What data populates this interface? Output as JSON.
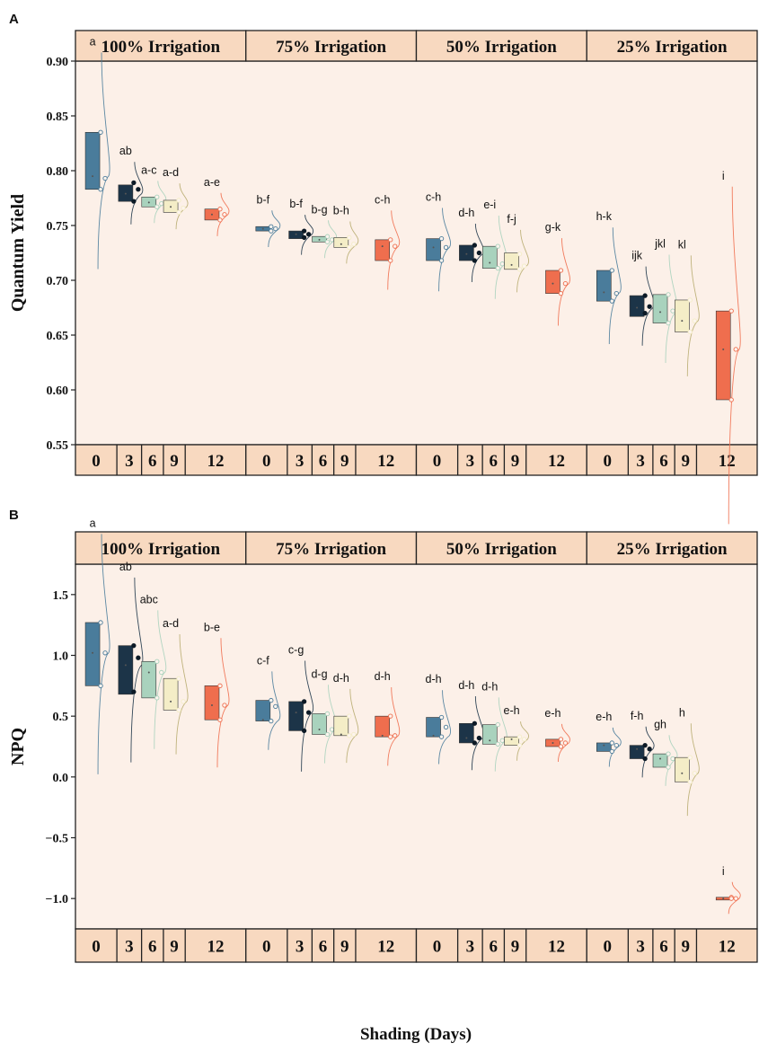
{
  "figure": {
    "x_title": "Shading (Days)",
    "fill_colors": {
      "0": "#4a7c9b",
      "3": "#1c3448",
      "6": "#a9d2bd",
      "9": "#f4edc7",
      "12": "#ef6e4e"
    },
    "panel_background": "#fcf0e8",
    "strip_background": "#f8d9c0"
  },
  "chart_data": [
    {
      "type": "box-violin",
      "panel_label": "A",
      "ylabel": "Quantum Yield",
      "ylim": [
        0.55,
        0.9
      ],
      "yticks": [
        0.55,
        0.6,
        0.65,
        0.7,
        0.75,
        0.8,
        0.85,
        0.9
      ],
      "ytick_labels": [
        "0.55",
        "0.60",
        "0.65",
        "0.70",
        "0.75",
        "0.80",
        "0.85",
        "0.90"
      ],
      "facets": [
        "100% Irrigation",
        "75% Irrigation",
        "50% Irrigation",
        "25% Irrigation"
      ],
      "categories": [
        "0",
        "3",
        "6",
        "9",
        "12"
      ],
      "series": [
        {
          "facet": "100% Irrigation",
          "groups": [
            {
              "day": "0",
              "q1": 0.783,
              "q3": 0.835,
              "median": 0.795,
              "letter": "a",
              "points": [
                0.835,
                0.793,
                0.783
              ]
            },
            {
              "day": "3",
              "q1": 0.772,
              "q3": 0.787,
              "median": 0.779,
              "letter": "ab",
              "points": [
                0.789,
                0.783,
                0.772
              ]
            },
            {
              "day": "6",
              "q1": 0.767,
              "q3": 0.776,
              "median": 0.771,
              "letter": "a-c",
              "points": [
                0.776,
                0.77,
                0.767
              ]
            },
            {
              "day": "9",
              "q1": 0.762,
              "q3": 0.773,
              "median": 0.767,
              "letter": "a-d",
              "points": [
                0.773,
                0.766,
                0.762
              ]
            },
            {
              "day": "12",
              "q1": 0.755,
              "q3": 0.765,
              "median": 0.76,
              "letter": "a-e",
              "points": [
                0.765,
                0.76,
                0.755
              ]
            }
          ]
        },
        {
          "facet": "75% Irrigation",
          "groups": [
            {
              "day": "0",
              "q1": 0.745,
              "q3": 0.749,
              "median": 0.747,
              "letter": "b-f",
              "points": [
                0.749,
                0.747,
                0.745
              ]
            },
            {
              "day": "3",
              "q1": 0.738,
              "q3": 0.745,
              "median": 0.742,
              "letter": "b-f",
              "points": [
                0.745,
                0.742,
                0.739
              ]
            },
            {
              "day": "6",
              "q1": 0.735,
              "q3": 0.74,
              "median": 0.737,
              "letter": "b-g",
              "points": [
                0.74,
                0.737,
                0.735
              ]
            },
            {
              "day": "9",
              "q1": 0.73,
              "q3": 0.739,
              "median": 0.733,
              "letter": "b-h",
              "points": [
                0.739,
                0.733,
                0.73
              ]
            },
            {
              "day": "12",
              "q1": 0.718,
              "q3": 0.737,
              "median": 0.731,
              "letter": "c-h",
              "points": [
                0.737,
                0.731,
                0.718
              ]
            }
          ]
        },
        {
          "facet": "50% Irrigation",
          "groups": [
            {
              "day": "0",
              "q1": 0.718,
              "q3": 0.738,
              "median": 0.73,
              "letter": "c-h",
              "points": [
                0.738,
                0.73,
                0.718
              ]
            },
            {
              "day": "3",
              "q1": 0.718,
              "q3": 0.732,
              "median": 0.724,
              "letter": "d-h",
              "points": [
                0.732,
                0.725,
                0.718
              ]
            },
            {
              "day": "6",
              "q1": 0.711,
              "q3": 0.731,
              "median": 0.716,
              "letter": "e-i",
              "points": [
                0.731,
                0.715,
                0.711
              ]
            },
            {
              "day": "9",
              "q1": 0.71,
              "q3": 0.725,
              "median": 0.714,
              "letter": "f-j",
              "points": [
                0.724,
                0.713,
                0.71
              ]
            },
            {
              "day": "12",
              "q1": 0.688,
              "q3": 0.709,
              "median": 0.697,
              "letter": "g-k",
              "points": [
                0.709,
                0.697,
                0.688
              ]
            }
          ]
        },
        {
          "facet": "25% Irrigation",
          "groups": [
            {
              "day": "0",
              "q1": 0.681,
              "q3": 0.709,
              "median": 0.689,
              "letter": "h-k",
              "points": [
                0.709,
                0.688,
                0.681
              ]
            },
            {
              "day": "3",
              "q1": 0.667,
              "q3": 0.686,
              "median": 0.675,
              "letter": "ijk",
              "points": [
                0.686,
                0.676,
                0.67
              ]
            },
            {
              "day": "6",
              "q1": 0.661,
              "q3": 0.687,
              "median": 0.671,
              "letter": "jkl",
              "points": [
                0.687,
                0.672,
                0.661
              ]
            },
            {
              "day": "9",
              "q1": 0.653,
              "q3": 0.682,
              "median": 0.663,
              "letter": "kl",
              "points": [
                0.682,
                0.663,
                0.653
              ]
            },
            {
              "day": "12",
              "q1": 0.591,
              "q3": 0.672,
              "median": 0.637,
              "letter": "i",
              "points": [
                0.672,
                0.637,
                0.591
              ]
            }
          ]
        }
      ]
    },
    {
      "type": "box-violin",
      "panel_label": "B",
      "ylabel": "NPQ",
      "ylim": [
        -1.25,
        1.75
      ],
      "yticks": [
        -1.0,
        -0.5,
        0.0,
        0.5,
        1.0,
        1.5
      ],
      "ytick_labels": [
        "−1.0",
        "−0.5",
        "0.0",
        "0.5",
        "1.0",
        "1.5"
      ],
      "facets": [
        "100% Irrigation",
        "75% Irrigation",
        "50% Irrigation",
        "25% Irrigation"
      ],
      "categories": [
        "0",
        "3",
        "6",
        "9",
        "12"
      ],
      "series": [
        {
          "facet": "100% Irrigation",
          "groups": [
            {
              "day": "0",
              "q1": 0.75,
              "q3": 1.27,
              "median": 1.02,
              "letter": "a",
              "points": [
                1.27,
                1.02,
                0.75
              ]
            },
            {
              "day": "3",
              "q1": 0.68,
              "q3": 1.08,
              "median": 0.92,
              "letter": "ab",
              "points": [
                1.08,
                0.98,
                0.7
              ]
            },
            {
              "day": "6",
              "q1": 0.65,
              "q3": 0.95,
              "median": 0.86,
              "letter": "abc",
              "points": [
                0.95,
                0.86,
                0.65
              ]
            },
            {
              "day": "9",
              "q1": 0.55,
              "q3": 0.81,
              "median": 0.62,
              "letter": "a-d",
              "points": [
                0.81,
                0.62,
                0.55
              ]
            },
            {
              "day": "12",
              "q1": 0.47,
              "q3": 0.75,
              "median": 0.59,
              "letter": "b-e",
              "points": [
                0.75,
                0.59,
                0.47
              ]
            }
          ]
        },
        {
          "facet": "75% Irrigation",
          "groups": [
            {
              "day": "0",
              "q1": 0.46,
              "q3": 0.63,
              "median": 0.47,
              "letter": "c-f",
              "points": [
                0.63,
                0.58,
                0.46
              ]
            },
            {
              "day": "3",
              "q1": 0.38,
              "q3": 0.62,
              "median": 0.53,
              "letter": "c-g",
              "points": [
                0.62,
                0.53,
                0.38
              ]
            },
            {
              "day": "6",
              "q1": 0.35,
              "q3": 0.52,
              "median": 0.39,
              "letter": "d-g",
              "points": [
                0.52,
                0.39,
                0.35
              ]
            },
            {
              "day": "9",
              "q1": 0.34,
              "q3": 0.5,
              "median": 0.35,
              "letter": "d-h",
              "points": [
                0.5,
                0.35,
                0.34
              ]
            },
            {
              "day": "12",
              "q1": 0.33,
              "q3": 0.5,
              "median": 0.34,
              "letter": "d-h",
              "points": [
                0.5,
                0.34,
                0.33
              ]
            }
          ]
        },
        {
          "facet": "50% Irrigation",
          "groups": [
            {
              "day": "0",
              "q1": 0.33,
              "q3": 0.49,
              "median": 0.34,
              "letter": "d-h",
              "points": [
                0.49,
                0.41,
                0.33
              ]
            },
            {
              "day": "3",
              "q1": 0.28,
              "q3": 0.44,
              "median": 0.32,
              "letter": "d-h",
              "points": [
                0.44,
                0.32,
                0.28
              ]
            },
            {
              "day": "6",
              "q1": 0.27,
              "q3": 0.43,
              "median": 0.3,
              "letter": "d-h",
              "points": [
                0.43,
                0.3,
                0.27
              ]
            },
            {
              "day": "9",
              "q1": 0.26,
              "q3": 0.33,
              "median": 0.31,
              "letter": "e-h",
              "points": [
                0.33,
                0.31,
                0.26
              ]
            },
            {
              "day": "12",
              "q1": 0.25,
              "q3": 0.31,
              "median": 0.28,
              "letter": "e-h",
              "points": [
                0.31,
                0.28,
                0.25
              ]
            }
          ]
        },
        {
          "facet": "25% Irrigation",
          "groups": [
            {
              "day": "0",
              "q1": 0.21,
              "q3": 0.28,
              "median": 0.26,
              "letter": "e-h",
              "points": [
                0.28,
                0.26,
                0.21
              ]
            },
            {
              "day": "3",
              "q1": 0.15,
              "q3": 0.26,
              "median": 0.23,
              "letter": "f-h",
              "points": [
                0.26,
                0.23,
                0.15
              ]
            },
            {
              "day": "6",
              "q1": 0.08,
              "q3": 0.19,
              "median": 0.15,
              "letter": "gh",
              "points": [
                0.19,
                0.15,
                0.08
              ]
            },
            {
              "day": "9",
              "q1": -0.04,
              "q3": 0.16,
              "median": 0.03,
              "letter": "h",
              "points": [
                0.16,
                0.03,
                -0.04
              ]
            },
            {
              "day": "12",
              "q1": -1.0,
              "q3": -0.99,
              "median": -1.0,
              "letter": "i",
              "points": [
                -0.99,
                -1.0,
                -1.0
              ]
            }
          ]
        }
      ]
    }
  ]
}
